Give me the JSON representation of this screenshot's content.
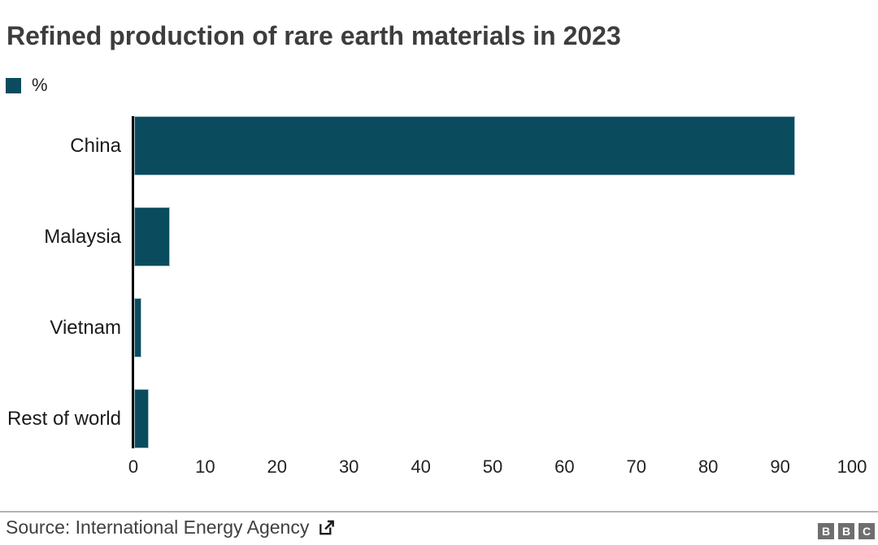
{
  "chart": {
    "title": "Refined production of rare earth materials in 2023",
    "legend_label": "%",
    "source_label": "Source: International Energy Agency",
    "brand_letters": [
      "B",
      "B",
      "C"
    ],
    "colors": {
      "bar": "#0a4c5e",
      "axis": "#000000",
      "title_text": "#3d3d3d",
      "label_text": "#1a1a1a",
      "tick_text": "#222222",
      "source_text": "#404040",
      "divider": "#b3b3b3",
      "brand_gray": "#6e6e6e"
    }
  },
  "chart_data": {
    "type": "bar",
    "orientation": "horizontal",
    "title": "Refined production of rare earth materials in 2023",
    "categories": [
      "China",
      "Malaysia",
      "Vietnam",
      "Rest of world"
    ],
    "values": [
      92,
      5,
      1,
      2
    ],
    "unit": "%",
    "xlabel": "",
    "ylabel": "",
    "xlim": [
      0,
      100
    ],
    "x_ticks": [
      0,
      10,
      20,
      30,
      40,
      50,
      60,
      70,
      80,
      90,
      100
    ],
    "grid": false,
    "legend": {
      "position": "top-left",
      "entries": [
        "%"
      ]
    }
  }
}
